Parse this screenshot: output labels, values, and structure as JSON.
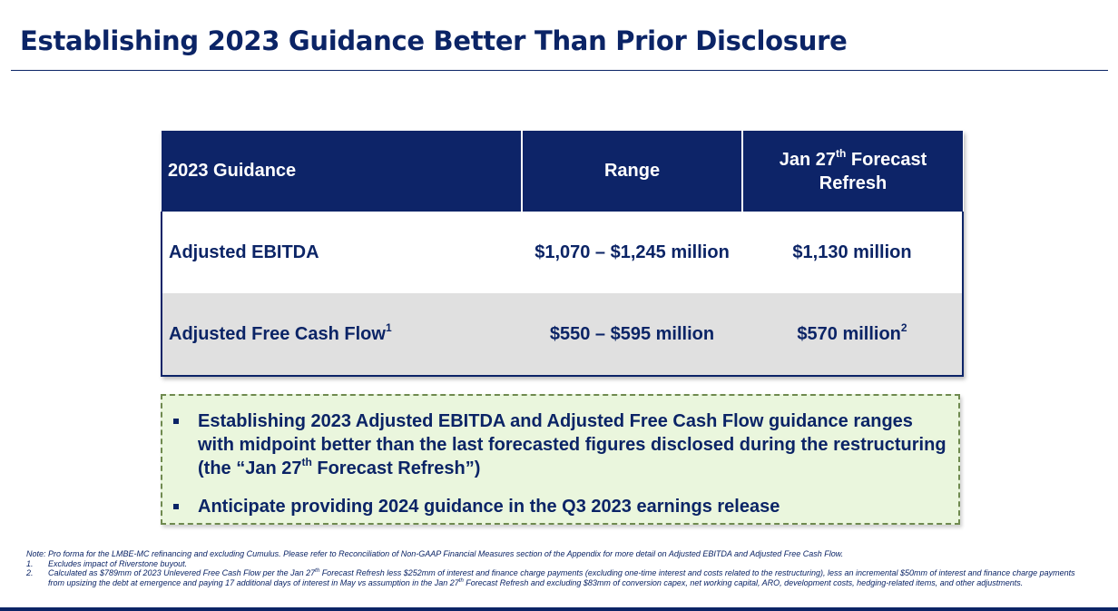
{
  "page": {
    "title": "Establishing 2023 Guidance Better Than Prior Disclosure"
  },
  "table": {
    "headers": {
      "col1": "2023 Guidance",
      "col2": "Range",
      "col3_pre": "Jan 27",
      "col3_sup": "th",
      "col3_post": " Forecast Refresh"
    },
    "rows": [
      {
        "label": "Adjusted EBITDA",
        "label_sup": "",
        "range": "$1,070 – $1,245 million",
        "refresh": "$1,130 million",
        "refresh_sup": ""
      },
      {
        "label": "Adjusted Free Cash Flow",
        "label_sup": "1",
        "range": "$550 – $595 million",
        "refresh": "$570 million",
        "refresh_sup": "2"
      }
    ]
  },
  "callout": {
    "bullet1_pre": "Establishing 2023 Adjusted EBITDA and Adjusted Free Cash Flow guidance ranges with midpoint better than the last forecasted figures disclosed during the restructuring (the “Jan 27",
    "bullet1_sup": "th",
    "bullet1_post": " Forecast Refresh”)",
    "bullet2": "Anticipate providing 2024 guidance in the Q3 2023 earnings release"
  },
  "footnotes": {
    "note": "Note: Pro forma for the LMBE-MC refinancing and excluding Cumulus. Please refer to Reconciliation of Non-GAAP Financial Measures section of the Appendix for more detail on Adjusted EBITDA and Adjusted Free Cash Flow.",
    "fn1_num": "1.",
    "fn1": "Excludes impact of Riverstone buyout.",
    "fn2_num": "2.",
    "fn2_a": "Calculated as $789mm of 2023 Unlevered Free Cash Flow per the Jan 27",
    "fn2_sup1": "th",
    "fn2_b": " Forecast Refresh less $252mm of interest and finance charge payments (excluding one-time interest and costs related to the restructuring), less an incremental $50mm of interest and finance charge payments from upsizing the debt at emergence and paying 17 additional days of interest in May vs assumption in the Jan 27",
    "fn2_sup2": "th",
    "fn2_c": " Forecast Refresh and excluding $83mm of conversion capex, net working capital, ARO, development costs, hedging-related items, and other adjustments."
  },
  "colors": {
    "navy": "#0b2466",
    "header_bg": "#0d2468",
    "row_alt": "#e0e0e0",
    "callout_bg": "#eaf6dd",
    "callout_border": "#6f8a4f"
  }
}
